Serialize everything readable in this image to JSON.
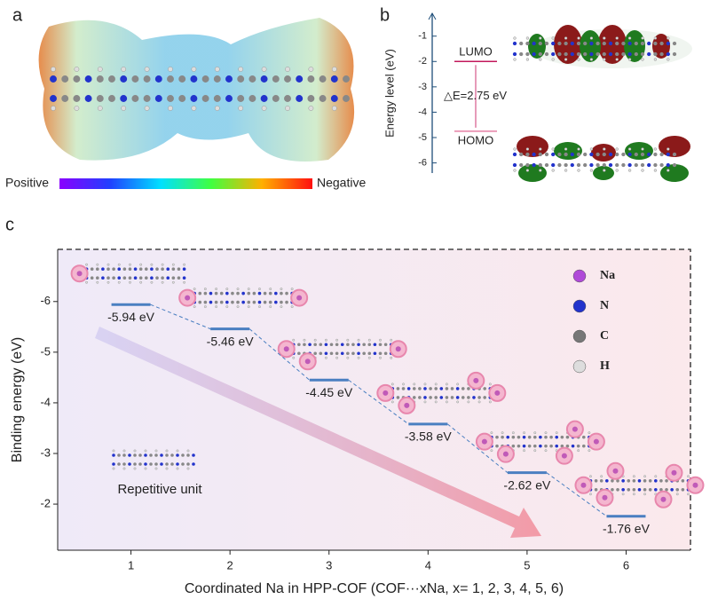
{
  "panel_a": {
    "label": "a",
    "colorbar_labels": [
      "Positive",
      "Negative"
    ]
  },
  "chart_data": [
    {
      "type": "energy-level",
      "label": "b",
      "ylabel": "Energy level (eV)",
      "categories": [
        "LUMO",
        "HOMO"
      ],
      "values": [
        -2.0,
        -4.75
      ],
      "colors": [
        "#c2185b",
        "#e57fa5"
      ],
      "annotation": "△E=2.75 eV",
      "ylim": [
        -6.4,
        -0.1
      ],
      "yticks": [
        -1,
        -2,
        -3,
        -4,
        -5,
        -6
      ]
    },
    {
      "type": "step-level",
      "label": "c",
      "xlabel": "Coordinated Na in HPP-COF (COF···xNa, x= 1, 2, 3, 4, 5, 6)",
      "ylabel": "Binding energy (eV)",
      "x": [
        1,
        2,
        3,
        4,
        5,
        6
      ],
      "values": [
        -5.94,
        -5.46,
        -4.45,
        -3.58,
        -2.62,
        -1.76
      ],
      "value_labels": [
        "-5.94 eV",
        "-5.46 eV",
        "-4.45 eV",
        "-3.58 eV",
        "-2.62 eV",
        "-1.76 eV"
      ],
      "color": "#4a7fc1",
      "xlim": [
        0.26,
        6.65
      ],
      "xticks": [
        1,
        2,
        3,
        4,
        5,
        6
      ],
      "ylim": [
        -1.09,
        -7.03
      ],
      "yticks": [
        -6,
        -5,
        -4,
        -3,
        -2
      ],
      "legend": [
        {
          "name": "Na",
          "color": "#b04ad8"
        },
        {
          "name": "N",
          "color": "#2233cc"
        },
        {
          "name": "C",
          "color": "#777777"
        },
        {
          "name": "H",
          "color": "#dddddd"
        }
      ],
      "annotation": "Repetitive unit"
    }
  ]
}
